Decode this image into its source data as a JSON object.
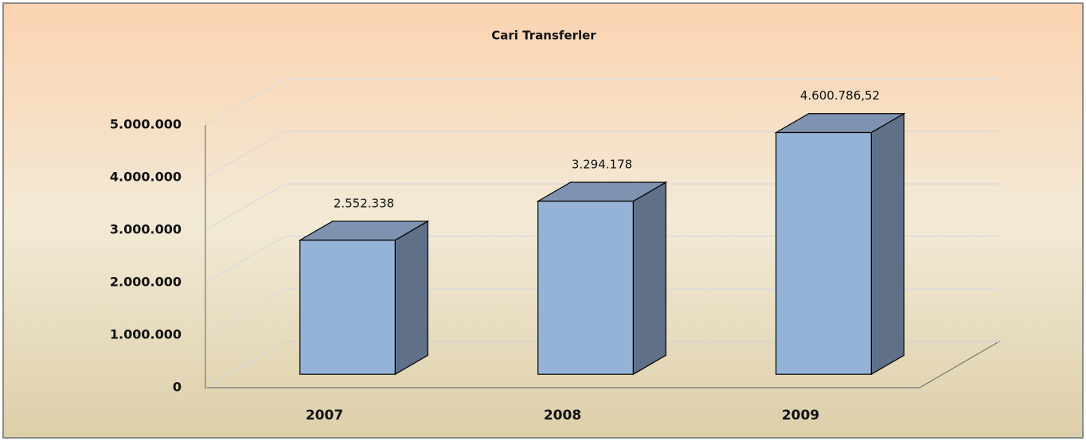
{
  "chart_data": {
    "type": "bar3d",
    "title": "Cari Transferler",
    "categories": [
      "2007",
      "2008",
      "2009"
    ],
    "values": [
      2552338,
      3294178,
      4600786.52
    ],
    "value_labels": [
      "2.552.338",
      "3.294.178",
      "4.600.786,52"
    ],
    "color": "#95b3d7",
    "ylim": [
      0,
      5000000
    ],
    "yticks": [
      0,
      {
        "value": 1000000,
        "label": "1.000.000"
      },
      {
        "value": 2000000,
        "label": "2.000.000"
      },
      {
        "value": 3000000,
        "label": "3.000.000"
      },
      {
        "value": 4000000,
        "label": "4.000.000"
      },
      {
        "value": 5000000,
        "label": "5.000.000"
      }
    ],
    "grid": true
  }
}
